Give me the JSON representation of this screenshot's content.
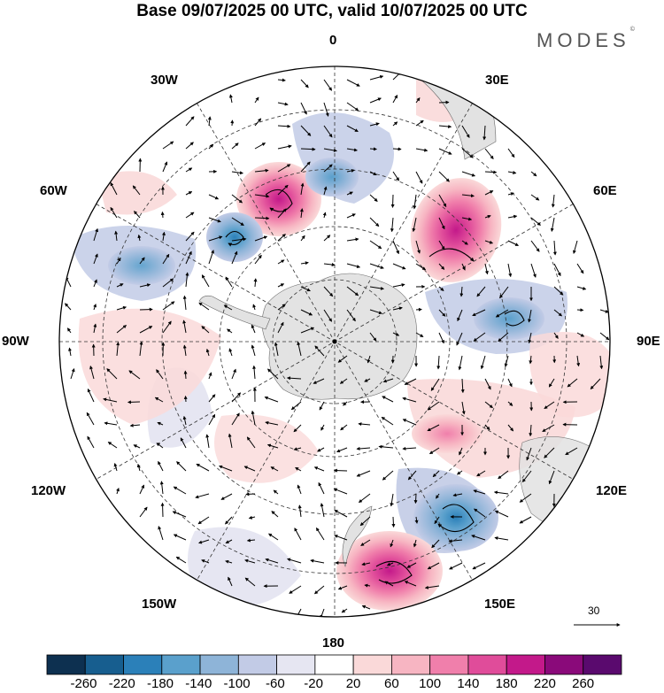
{
  "title": "Base 09/07/2025 00 UTC, valid 10/07/2025 00 UTC",
  "brand": "MODES",
  "brand_mark": "©",
  "longitude_labels": {
    "lon_0": "0",
    "lon_30E": "30E",
    "lon_60E": "60E",
    "lon_90E": "90E",
    "lon_120E": "120E",
    "lon_150E": "150E",
    "lon_180": "180",
    "lon_150W": "150W",
    "lon_120W": "120W",
    "lon_90W": "90W",
    "lon_60W": "60W",
    "lon_30W": "30W"
  },
  "colorbar": {
    "ticks": [
      "-260",
      "-220",
      "-180",
      "-140",
      "-100",
      "-60",
      "-20",
      "20",
      "60",
      "100",
      "140",
      "180",
      "220",
      "260"
    ],
    "colors": [
      "#0d3050",
      "#175e8f",
      "#2b80b9",
      "#5aa0cc",
      "#8eb4d8",
      "#c2cbe6",
      "#e6e6f2",
      "#ffffff",
      "#fad9d9",
      "#f7b5c2",
      "#f07fab",
      "#e04c9a",
      "#c3198a",
      "#8a0a7a",
      "#5a0a6e"
    ]
  },
  "vector_reference": "30",
  "colors": {
    "land": "#e2e2e2",
    "positive_weak": "#fad9d9",
    "positive_strong": "#e04c9a",
    "negative_weak": "#c2cbe6",
    "negative_strong": "#2b80b9"
  }
}
